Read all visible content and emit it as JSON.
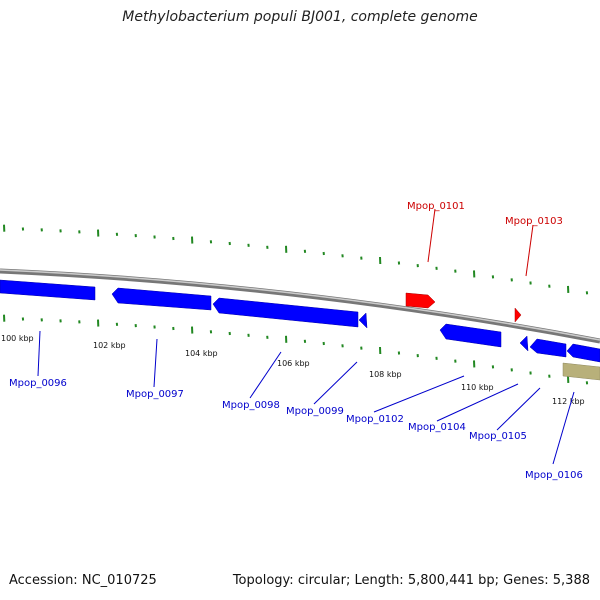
{
  "title": "Methylobacterium populi BJ001, complete genome",
  "footer": {
    "accession_label": "Accession:",
    "accession": "NC_010725",
    "topology_label": "Topology:",
    "topology": "circular",
    "length_label": "Length:",
    "length": "5,800,441 bp",
    "genes_label": "Genes:",
    "genes": "5,388"
  },
  "colors": {
    "forward_gene": "#ff0000",
    "reverse_gene": "#0000ff",
    "rna_gene": "#b8b07a",
    "backbone": "#888888",
    "ticks": "#228822",
    "label_forward": "#cc0000",
    "label_reverse": "#0000cc"
  },
  "scale_labels": [
    "100 kbp",
    "102 kbp",
    "104 kbp",
    "106 kbp",
    "108 kbp",
    "110 kbp",
    "112 kbp"
  ],
  "gene_labels": [
    {
      "text": "Mpop_0096",
      "strand": "reverse"
    },
    {
      "text": "Mpop_0097",
      "strand": "reverse"
    },
    {
      "text": "Mpop_0098",
      "strand": "reverse"
    },
    {
      "text": "Mpop_0099",
      "strand": "reverse"
    },
    {
      "text": "Mpop_0101",
      "strand": "forward"
    },
    {
      "text": "Mpop_0102",
      "strand": "reverse"
    },
    {
      "text": "Mpop_0103",
      "strand": "forward"
    },
    {
      "text": "Mpop_0104",
      "strand": "reverse"
    },
    {
      "text": "Mpop_0105",
      "strand": "reverse"
    },
    {
      "text": "Mpop_0106",
      "strand": "reverse"
    }
  ]
}
